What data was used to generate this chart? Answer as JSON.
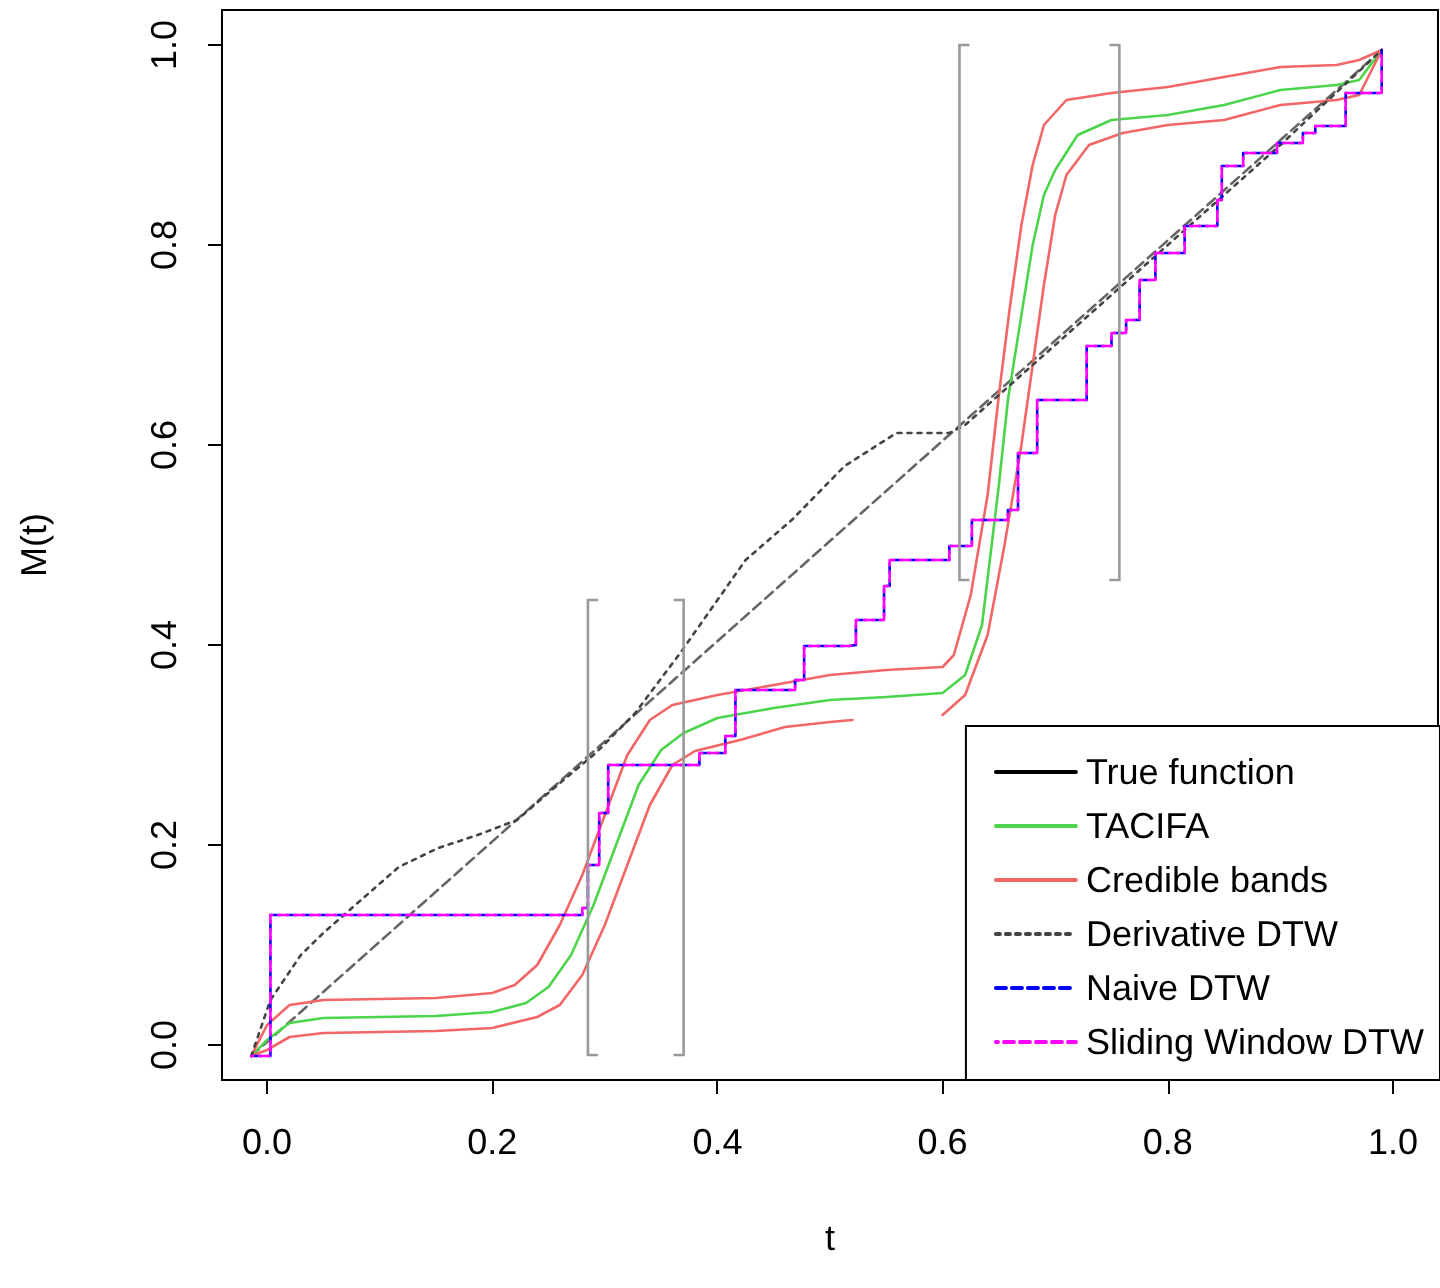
{
  "chart_data": {
    "type": "line",
    "xlabel": "t",
    "ylabel": "M(t)",
    "xlim": [
      -0.04,
      1.04
    ],
    "ylim": [
      -0.035,
      1.035
    ],
    "xticks": [
      {
        "value": 0,
        "label": "0.0"
      },
      0.2,
      0.4,
      0.6,
      0.8,
      {
        "value": 1,
        "label": "1.0"
      }
    ],
    "yticks": [
      {
        "value": 0,
        "label": "0.0"
      },
      0.2,
      0.4,
      0.6,
      0.8,
      {
        "value": 1,
        "label": "1.0"
      }
    ],
    "grid": false,
    "legend": "bottom right",
    "marker": "none",
    "series": [
      {
        "name": "True function",
        "color": "#000000",
        "line_style": "solid"
      },
      {
        "color": "#666666",
        "line_style": "dashed",
        "x": [
          -0.014,
          0.99
        ],
        "values": [
          -0.011,
          0.995
        ]
      },
      {
        "name": "TACIFA",
        "color": "#4cd44c",
        "line_style": "solid",
        "x": [
          -0.014,
          0.0,
          0.02,
          0.05,
          0.1,
          0.15,
          0.2,
          0.23,
          0.25,
          0.27,
          0.29,
          0.31,
          0.33,
          0.35,
          0.37,
          0.4,
          0.45,
          0.5,
          0.55,
          0.6,
          0.62,
          0.635,
          0.65,
          0.658,
          0.67,
          0.68,
          0.69,
          0.7,
          0.72,
          0.75,
          0.8,
          0.85,
          0.9,
          0.95,
          0.97,
          0.99
        ],
        "values": [
          -0.011,
          0.005,
          0.022,
          0.027,
          0.028,
          0.029,
          0.033,
          0.042,
          0.058,
          0.09,
          0.14,
          0.2,
          0.26,
          0.295,
          0.312,
          0.327,
          0.337,
          0.345,
          0.348,
          0.352,
          0.37,
          0.42,
          0.56,
          0.645,
          0.73,
          0.8,
          0.85,
          0.875,
          0.91,
          0.925,
          0.93,
          0.94,
          0.955,
          0.96,
          0.965,
          0.995
        ]
      },
      {
        "name": "Credible bands",
        "color": "#f26666",
        "line_style": "solid",
        "x": [
          -0.014,
          0.0,
          0.02,
          0.05,
          0.1,
          0.15,
          0.2,
          0.22,
          0.24,
          0.26,
          0.28,
          0.3,
          0.32,
          0.34,
          0.36,
          0.4,
          0.45,
          0.5,
          0.55,
          0.6,
          0.61,
          0.625,
          0.64,
          0.65,
          0.66,
          0.67,
          0.68,
          0.69,
          0.71,
          0.75,
          0.8,
          0.85,
          0.9,
          0.95,
          0.97,
          0.99
        ],
        "values": [
          -0.011,
          0.02,
          0.04,
          0.045,
          0.046,
          0.047,
          0.052,
          0.06,
          0.08,
          0.12,
          0.17,
          0.23,
          0.29,
          0.325,
          0.34,
          0.35,
          0.36,
          0.37,
          0.375,
          0.378,
          0.39,
          0.45,
          0.55,
          0.65,
          0.74,
          0.82,
          0.88,
          0.92,
          0.945,
          0.952,
          0.958,
          0.968,
          0.978,
          0.98,
          0.985,
          0.995
        ]
      },
      {
        "color": "#f26666",
        "line_style": "solid",
        "x": [
          -0.014,
          0.0,
          0.02,
          0.05,
          0.1,
          0.15,
          0.2,
          0.24,
          0.26,
          0.28,
          0.3,
          0.32,
          0.34,
          0.36,
          0.38,
          0.42,
          0.46,
          0.5,
          0.52,
          0.56,
          0.6,
          0.62,
          0.64,
          0.655,
          0.67,
          0.68,
          0.69,
          0.7,
          0.71,
          0.73,
          0.76,
          0.8,
          0.85,
          0.9,
          0.95,
          0.97,
          0.99
        ],
        "values": [
          -0.011,
          -0.005,
          0.008,
          0.012,
          0.013,
          0.014,
          0.017,
          0.028,
          0.04,
          0.07,
          0.12,
          0.18,
          0.24,
          0.28,
          0.294,
          0.305,
          0.318,
          0.323,
          0.325,
          null,
          0.33,
          0.35,
          0.41,
          0.5,
          0.6,
          0.68,
          0.76,
          0.83,
          0.87,
          0.9,
          0.912,
          0.92,
          0.925,
          0.94,
          0.945,
          0.95,
          0.995
        ]
      },
      {
        "name": "Derivative DTW",
        "color": "#444444",
        "line_style": "dotted",
        "x": [
          -0.014,
          0.003,
          0.03,
          0.05,
          0.117,
          0.152,
          0.187,
          0.222,
          0.257,
          0.292,
          0.327,
          0.367,
          0.425,
          0.466,
          0.513,
          0.559,
          0.606,
          0.62,
          0.7,
          0.8,
          0.9,
          0.99
        ],
        "values": [
          -0.011,
          0.045,
          0.09,
          0.112,
          0.178,
          0.197,
          0.21,
          0.225,
          0.259,
          0.292,
          0.332,
          0.392,
          0.485,
          0.525,
          0.579,
          0.612,
          0.612,
          0.62,
          0.7,
          0.8,
          0.9,
          0.995
        ]
      },
      {
        "name": "Naive DTW",
        "type": "step",
        "color": "#0000ff",
        "line_style": "dashed",
        "x": [
          -0.014,
          0.003,
          0.28,
          0.285,
          0.295,
          0.303,
          0.361,
          0.384,
          0.407,
          0.416,
          0.469,
          0.477,
          0.517,
          0.523,
          0.548,
          0.553,
          0.606,
          0.626,
          0.658,
          0.667,
          0.684,
          0.728,
          0.75,
          0.763,
          0.775,
          0.789,
          0.815,
          0.844,
          0.848,
          0.867,
          0.897,
          0.92,
          0.931,
          0.958,
          0.99
        ],
        "values": [
          -0.011,
          0.13,
          0.137,
          0.18,
          0.232,
          0.28,
          0.28,
          0.292,
          0.309,
          0.355,
          0.365,
          0.399,
          0.4,
          0.425,
          0.459,
          0.485,
          0.499,
          0.525,
          0.535,
          0.592,
          0.645,
          0.699,
          0.712,
          0.725,
          0.765,
          0.792,
          0.819,
          0.845,
          0.879,
          0.892,
          0.902,
          0.912,
          0.919,
          0.952,
          0.995
        ]
      },
      {
        "name": "Sliding Window DTW",
        "type": "step",
        "color": "#ff00ff",
        "line_style": "dashed",
        "x": [
          -0.014,
          0.003,
          0.28,
          0.285,
          0.295,
          0.303,
          0.361,
          0.384,
          0.407,
          0.416,
          0.469,
          0.477,
          0.517,
          0.523,
          0.548,
          0.553,
          0.606,
          0.626,
          0.658,
          0.667,
          0.684,
          0.728,
          0.75,
          0.763,
          0.775,
          0.789,
          0.815,
          0.844,
          0.848,
          0.867,
          0.897,
          0.92,
          0.931,
          0.958,
          0.99
        ],
        "values": [
          -0.011,
          0.13,
          0.137,
          0.18,
          0.232,
          0.28,
          0.28,
          0.292,
          0.309,
          0.355,
          0.365,
          0.399,
          0.4,
          0.425,
          0.459,
          0.485,
          0.499,
          0.525,
          0.535,
          0.592,
          0.645,
          0.699,
          0.712,
          0.725,
          0.765,
          0.792,
          0.819,
          0.845,
          0.879,
          0.892,
          0.902,
          0.912,
          0.919,
          0.952,
          0.995
        ]
      }
    ]
  }
}
